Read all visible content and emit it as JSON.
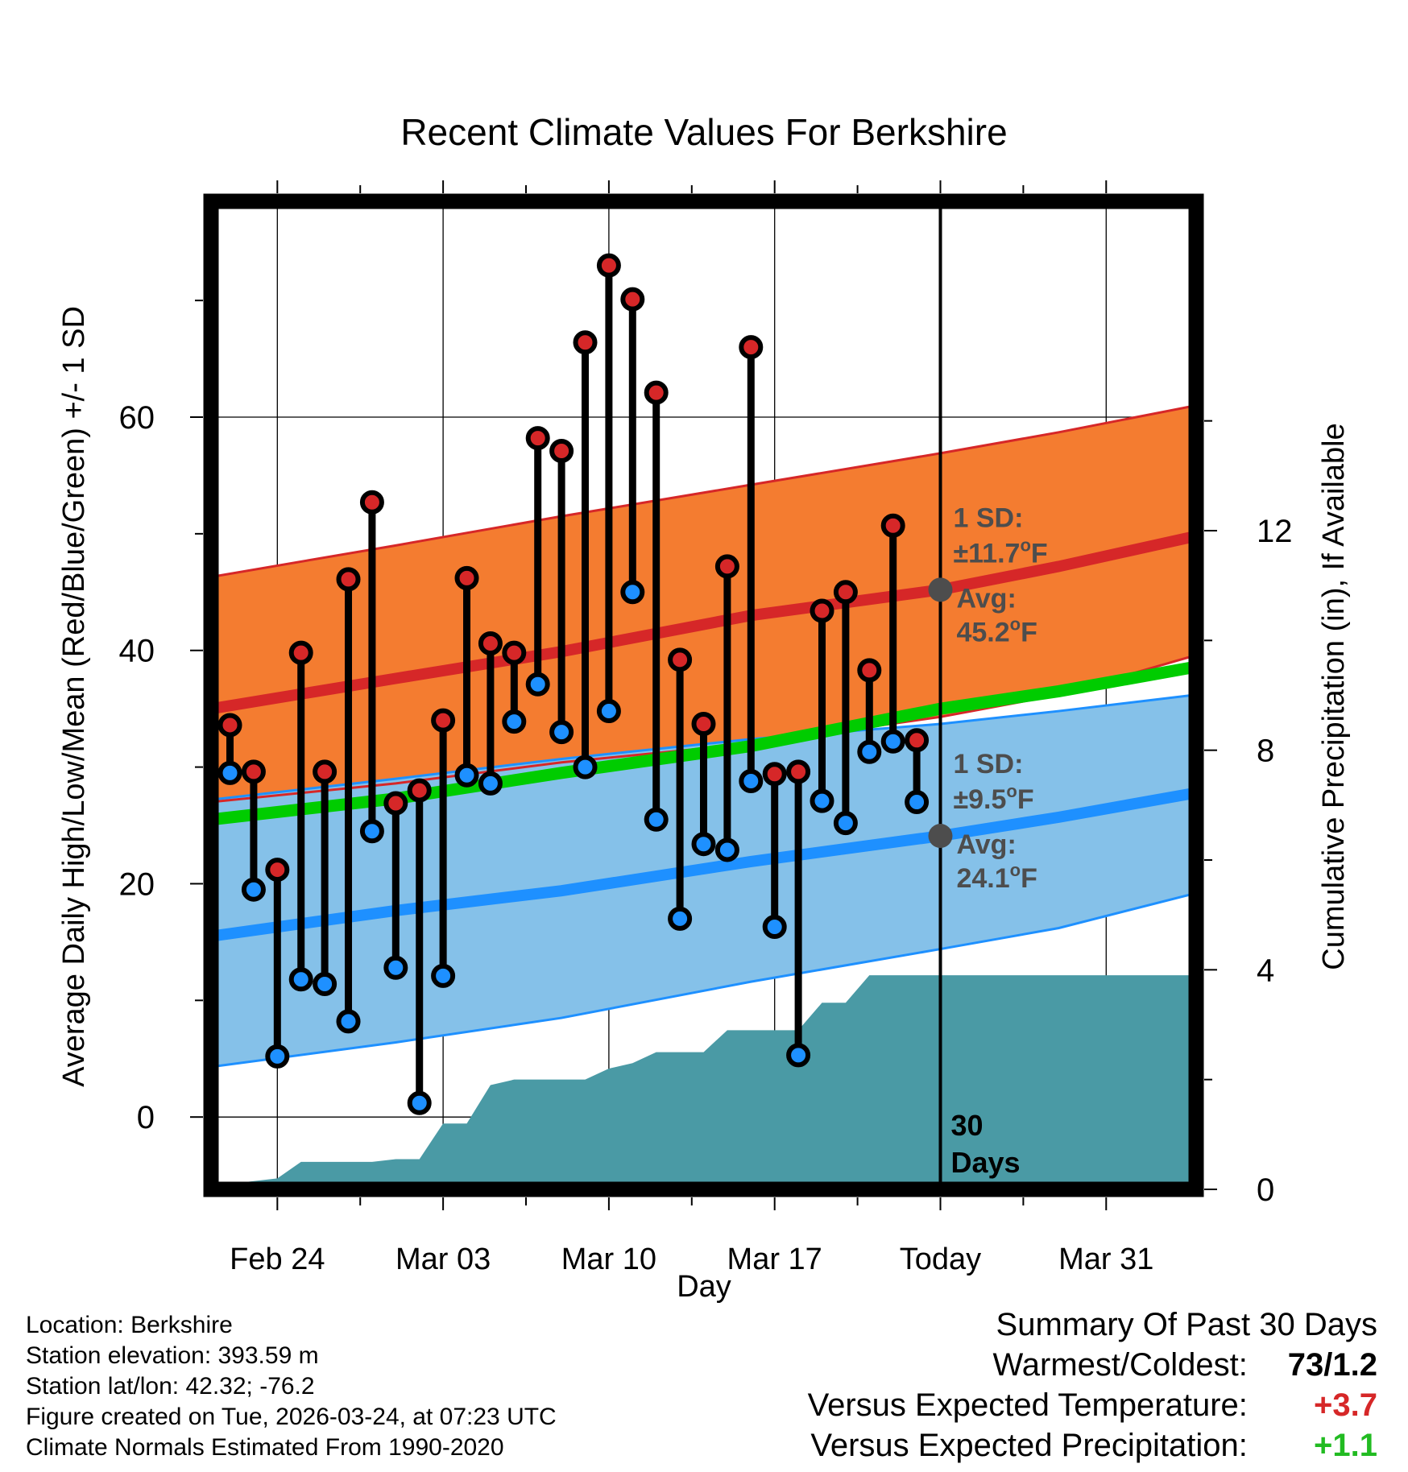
{
  "chart_data": {
    "type": "line",
    "title": "Recent Climate Values For Berkshire",
    "xlabel": "Day",
    "ylabel": "Average Daily High/Low/Mean (Red/Blue/Green) +/- 1 SD",
    "y2label": "Cumulative Precipitation (in), If Available",
    "xlim": [
      -2.8,
      38.8
    ],
    "ylim": [
      -6.2,
      78.5
    ],
    "y2lim": [
      0,
      18
    ],
    "x_ticks": [
      {
        "x": 0,
        "label": "Feb 24"
      },
      {
        "x": 7,
        "label": "Mar 03"
      },
      {
        "x": 14,
        "label": "Mar 10"
      },
      {
        "x": 21,
        "label": "Mar 17"
      },
      {
        "x": 28,
        "label": "Today"
      },
      {
        "x": 35,
        "label": "Mar 31"
      }
    ],
    "y_ticks": [
      0,
      20,
      40,
      60
    ],
    "y2_ticks": [
      0,
      4,
      8,
      12
    ],
    "today_x": 28,
    "today_label": "30\nDays",
    "grid": true,
    "normals": {
      "x": [
        -2.8,
        5,
        12,
        20,
        28,
        33,
        38.8
      ],
      "high_avg": [
        35.0,
        37.6,
        39.9,
        43.0,
        45.2,
        47.2,
        49.8
      ],
      "high_upper": [
        46.3,
        49.0,
        51.5,
        54.2,
        56.9,
        58.7,
        61.0
      ],
      "high_lower": [
        27.0,
        28.6,
        30.4,
        32.0,
        34.3,
        36.2,
        39.6
      ],
      "low_avg": [
        15.5,
        17.7,
        19.4,
        21.9,
        24.1,
        25.7,
        27.8
      ],
      "low_upper": [
        27.2,
        29.0,
        30.7,
        32.4,
        33.7,
        34.8,
        36.2
      ],
      "low_lower": [
        4.3,
        6.4,
        8.5,
        11.6,
        14.4,
        16.2,
        19.2
      ],
      "mean_avg": [
        25.5,
        27.3,
        29.5,
        31.8,
        35.0,
        36.5,
        38.6
      ]
    },
    "series": [
      {
        "name": "High",
        "color": "#d62728",
        "x": [
          -2,
          -1,
          0,
          1,
          2,
          3,
          4,
          5,
          6,
          7,
          8,
          9,
          10,
          11,
          12,
          13,
          14,
          15,
          16,
          17,
          18,
          19,
          20,
          21,
          22,
          23,
          24,
          25,
          26,
          27
        ],
        "values": [
          33.6,
          29.6,
          21.2,
          39.8,
          29.6,
          46.1,
          52.7,
          26.9,
          28.0,
          34.0,
          46.2,
          40.6,
          39.8,
          58.2,
          57.1,
          66.4,
          73.0,
          70.1,
          62.1,
          39.2,
          33.7,
          47.2,
          66.0,
          29.4,
          29.6,
          43.4,
          45.0,
          38.3,
          50.7,
          32.3
        ]
      },
      {
        "name": "Low",
        "color": "#1e90ff",
        "x": [
          -2,
          -1,
          0,
          1,
          2,
          3,
          4,
          5,
          6,
          7,
          8,
          9,
          10,
          11,
          12,
          13,
          14,
          15,
          16,
          17,
          18,
          19,
          20,
          21,
          22,
          23,
          24,
          25,
          26,
          27
        ],
        "values": [
          29.5,
          19.5,
          5.2,
          11.8,
          11.4,
          8.2,
          24.5,
          12.8,
          1.2,
          12.1,
          29.3,
          28.6,
          33.9,
          37.1,
          33.0,
          30.0,
          34.8,
          45.0,
          25.5,
          17.0,
          23.4,
          22.9,
          28.8,
          16.3,
          5.3,
          27.1,
          25.2,
          31.3,
          32.2,
          27.0
        ]
      }
    ],
    "precip": {
      "x": [
        -2.8,
        -2,
        -1,
        0,
        1,
        2,
        3,
        4,
        5,
        6,
        7,
        8,
        9,
        10,
        11,
        12,
        13,
        14,
        15,
        16,
        17,
        18,
        19,
        20,
        21,
        22,
        23,
        24,
        25,
        26,
        27,
        28,
        38.8
      ],
      "values": [
        0.0,
        0.1,
        0.15,
        0.2,
        0.5,
        0.5,
        0.5,
        0.5,
        0.55,
        0.55,
        1.2,
        1.2,
        1.9,
        2.0,
        2.0,
        2.0,
        2.0,
        2.2,
        2.3,
        2.5,
        2.5,
        2.5,
        2.9,
        2.9,
        2.9,
        2.9,
        3.4,
        3.4,
        3.9,
        3.9,
        3.9,
        3.9,
        3.9
      ]
    },
    "annotations": [
      {
        "series": "high",
        "sd_label": "1 SD:",
        "sd_value": "±11.7",
        "avg_label": "Avg:",
        "avg_value": "45.2",
        "unit": "F"
      },
      {
        "series": "low",
        "sd_label": "1 SD:",
        "sd_value": "±9.5",
        "avg_label": "Avg:",
        "avg_value": "24.1",
        "unit": "F"
      }
    ]
  },
  "colors": {
    "high_band": "#f47c30",
    "high_line": "#d62728",
    "low_band": "#85c1e9",
    "low_line": "#1e90ff",
    "mean_line": "#00cc00",
    "precip": "#4a9aa5",
    "annotation": "#4d4d4d"
  },
  "footer": {
    "location": "Location: Berkshire",
    "elevation": "Station elevation: 393.59 m",
    "latlon": "Station lat/lon: 42.32; -76.2",
    "created": "Figure created on Tue, 2026-03-24, at 07:23 UTC",
    "normals": "Climate Normals Estimated From 1990-2020"
  },
  "summary": {
    "title": "Summary Of Past 30 Days",
    "warm_cold_label": "Warmest/Coldest:",
    "warm_cold_value": "73/1.2",
    "temp_label": "Versus Expected Temperature:",
    "temp_value": "+3.7",
    "temp_color": "#d62728",
    "precip_label": "Versus Expected Precipitation:",
    "precip_value": "+1.1",
    "precip_color": "#22bb22"
  }
}
